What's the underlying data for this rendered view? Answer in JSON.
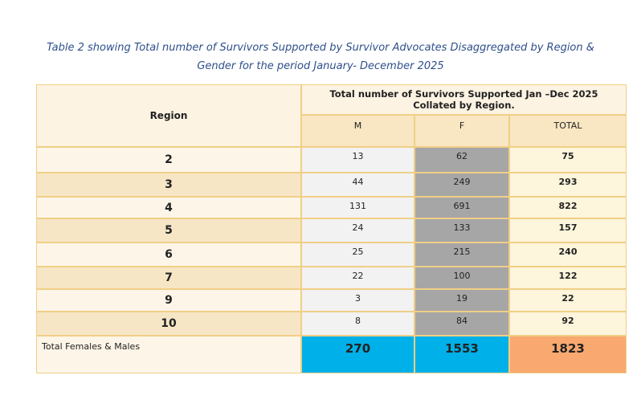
{
  "caption": [
    "Table 2 showing Total number of Survivors Supported by Survivor Advocates Disaggregated by Region &",
    "Gender for the period January- December 2025"
  ],
  "table": {
    "region_header": "Region",
    "group_header": [
      "Total number of Survivors Supported Jan –Dec 2025",
      "Collated by Region."
    ],
    "columns": [
      "M",
      "F",
      "TOTAL"
    ],
    "rows": [
      [
        "2",
        13,
        62,
        75
      ],
      [
        "3",
        44,
        249,
        293
      ],
      [
        "4",
        131,
        691,
        822
      ],
      [
        "5",
        24,
        133,
        157
      ],
      [
        "6",
        25,
        215,
        240
      ],
      [
        "7",
        22,
        100,
        122
      ],
      [
        "9",
        3,
        19,
        22
      ],
      [
        "10",
        8,
        84,
        92
      ]
    ],
    "total_row": [
      "Total Females & Males",
      270,
      1553,
      1823
    ]
  }
}
